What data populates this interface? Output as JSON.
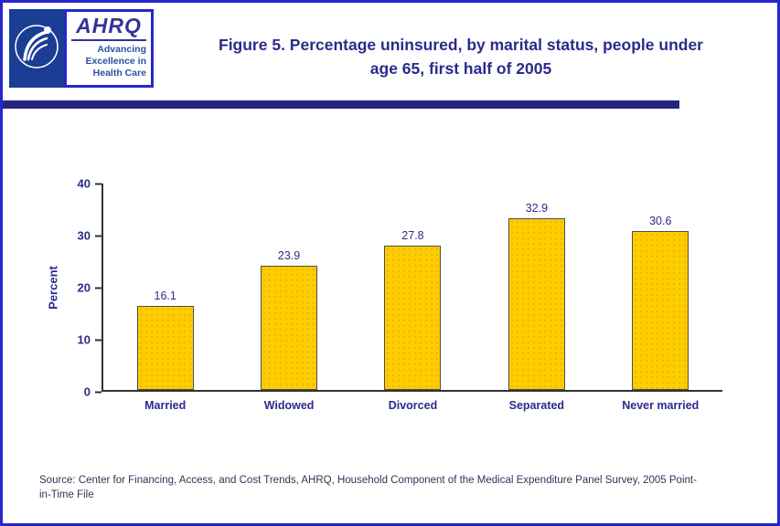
{
  "header": {
    "title": "Figure 5. Percentage uninsured, by marital status, people under age 65, first half of 2005",
    "ahrq_logo_text": "AHRQ",
    "ahrq_tagline": [
      "Advancing",
      "Excellence in",
      "Health Care"
    ],
    "hhs_logo_icon": "hhs-eagle-icon"
  },
  "chart_data": {
    "type": "bar",
    "categories": [
      "Married",
      "Widowed",
      "Divorced",
      "Separated",
      "Never married"
    ],
    "values": [
      16.1,
      23.9,
      27.8,
      32.9,
      30.6
    ],
    "title": "Figure 5. Percentage uninsured, by marital status, people under age 65, first half of 2005",
    "xlabel": "",
    "ylabel": "Percent",
    "ylim": [
      0,
      40
    ],
    "yticks": [
      0,
      10,
      20,
      30,
      40
    ],
    "grid": false,
    "legend_position": "none",
    "bar_color": "#FFCC00",
    "bar_border_color": "#4D4D4D",
    "label_color": "#2B2B8C"
  },
  "footer": {
    "source": "Source: Center for Financing, Access, and Cost Trends, AHRQ, Household Component of the Medical Expenditure Panel Survey, 2005 Point-in-Time File"
  },
  "colors": {
    "page_border": "#2626CC",
    "accent_navy": "#26267E",
    "title_navy": "#2B2B8C"
  }
}
